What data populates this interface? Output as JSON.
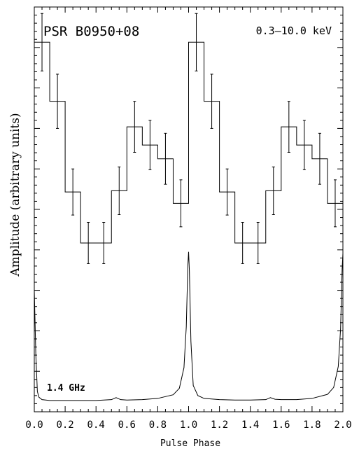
{
  "chart_data": {
    "type": "line",
    "title": "PSR B0950+08",
    "energy_band": "0.3–10.0 keV",
    "radio_label": "1.4 GHz",
    "xlabel": "Pulse Phase",
    "ylabel": "Amplitude (arbitrary units)",
    "xlim": [
      0.0,
      2.0
    ],
    "ylim": [
      0.0,
      1.0
    ],
    "x_ticks": [
      "0.0",
      "0.2",
      "0.4",
      "0.6",
      "0.8",
      "1.0",
      "1.2",
      "1.4",
      "1.6",
      "1.8",
      "2.0"
    ],
    "grid": false,
    "series": [
      {
        "style": "histogram-with-errorbars",
        "bin_width": 0.1,
        "x": [
          0.05,
          0.15,
          0.25,
          0.35,
          0.45,
          0.55,
          0.65,
          0.75,
          0.85,
          0.95,
          1.05,
          1.15,
          1.25,
          1.35,
          1.45,
          1.55,
          1.65,
          1.75,
          1.85,
          1.95
        ],
        "values": [
          0.913,
          0.767,
          0.543,
          0.417,
          0.417,
          0.546,
          0.704,
          0.659,
          0.625,
          0.515,
          0.913,
          0.767,
          0.543,
          0.417,
          0.417,
          0.546,
          0.704,
          0.659,
          0.625,
          0.515
        ],
        "errors": [
          0.071,
          0.067,
          0.057,
          0.051,
          0.051,
          0.059,
          0.063,
          0.061,
          0.063,
          0.058,
          0.071,
          0.067,
          0.057,
          0.051,
          0.051,
          0.059,
          0.063,
          0.061,
          0.063,
          0.058
        ]
      },
      {
        "style": "line",
        "x": [
          0.0,
          0.01,
          0.02,
          0.03,
          0.05,
          0.1,
          0.2,
          0.3,
          0.4,
          0.5,
          0.53,
          0.56,
          0.6,
          0.7,
          0.8,
          0.9,
          0.94,
          0.97,
          0.985,
          0.995,
          1.0,
          1.005,
          1.015,
          1.03,
          1.06,
          1.1,
          1.2,
          1.3,
          1.4,
          1.5,
          1.53,
          1.56,
          1.6,
          1.7,
          1.8,
          1.9,
          1.94,
          1.97,
          1.985,
          1.995,
          2.0
        ],
        "values": [
          0.301,
          0.14,
          0.05,
          0.036,
          0.03,
          0.028,
          0.028,
          0.028,
          0.028,
          0.03,
          0.035,
          0.03,
          0.029,
          0.03,
          0.033,
          0.042,
          0.058,
          0.109,
          0.21,
          0.361,
          0.395,
          0.349,
          0.174,
          0.065,
          0.04,
          0.033,
          0.03,
          0.029,
          0.029,
          0.03,
          0.035,
          0.031,
          0.03,
          0.03,
          0.033,
          0.043,
          0.06,
          0.112,
          0.205,
          0.353,
          0.391
        ]
      }
    ]
  }
}
